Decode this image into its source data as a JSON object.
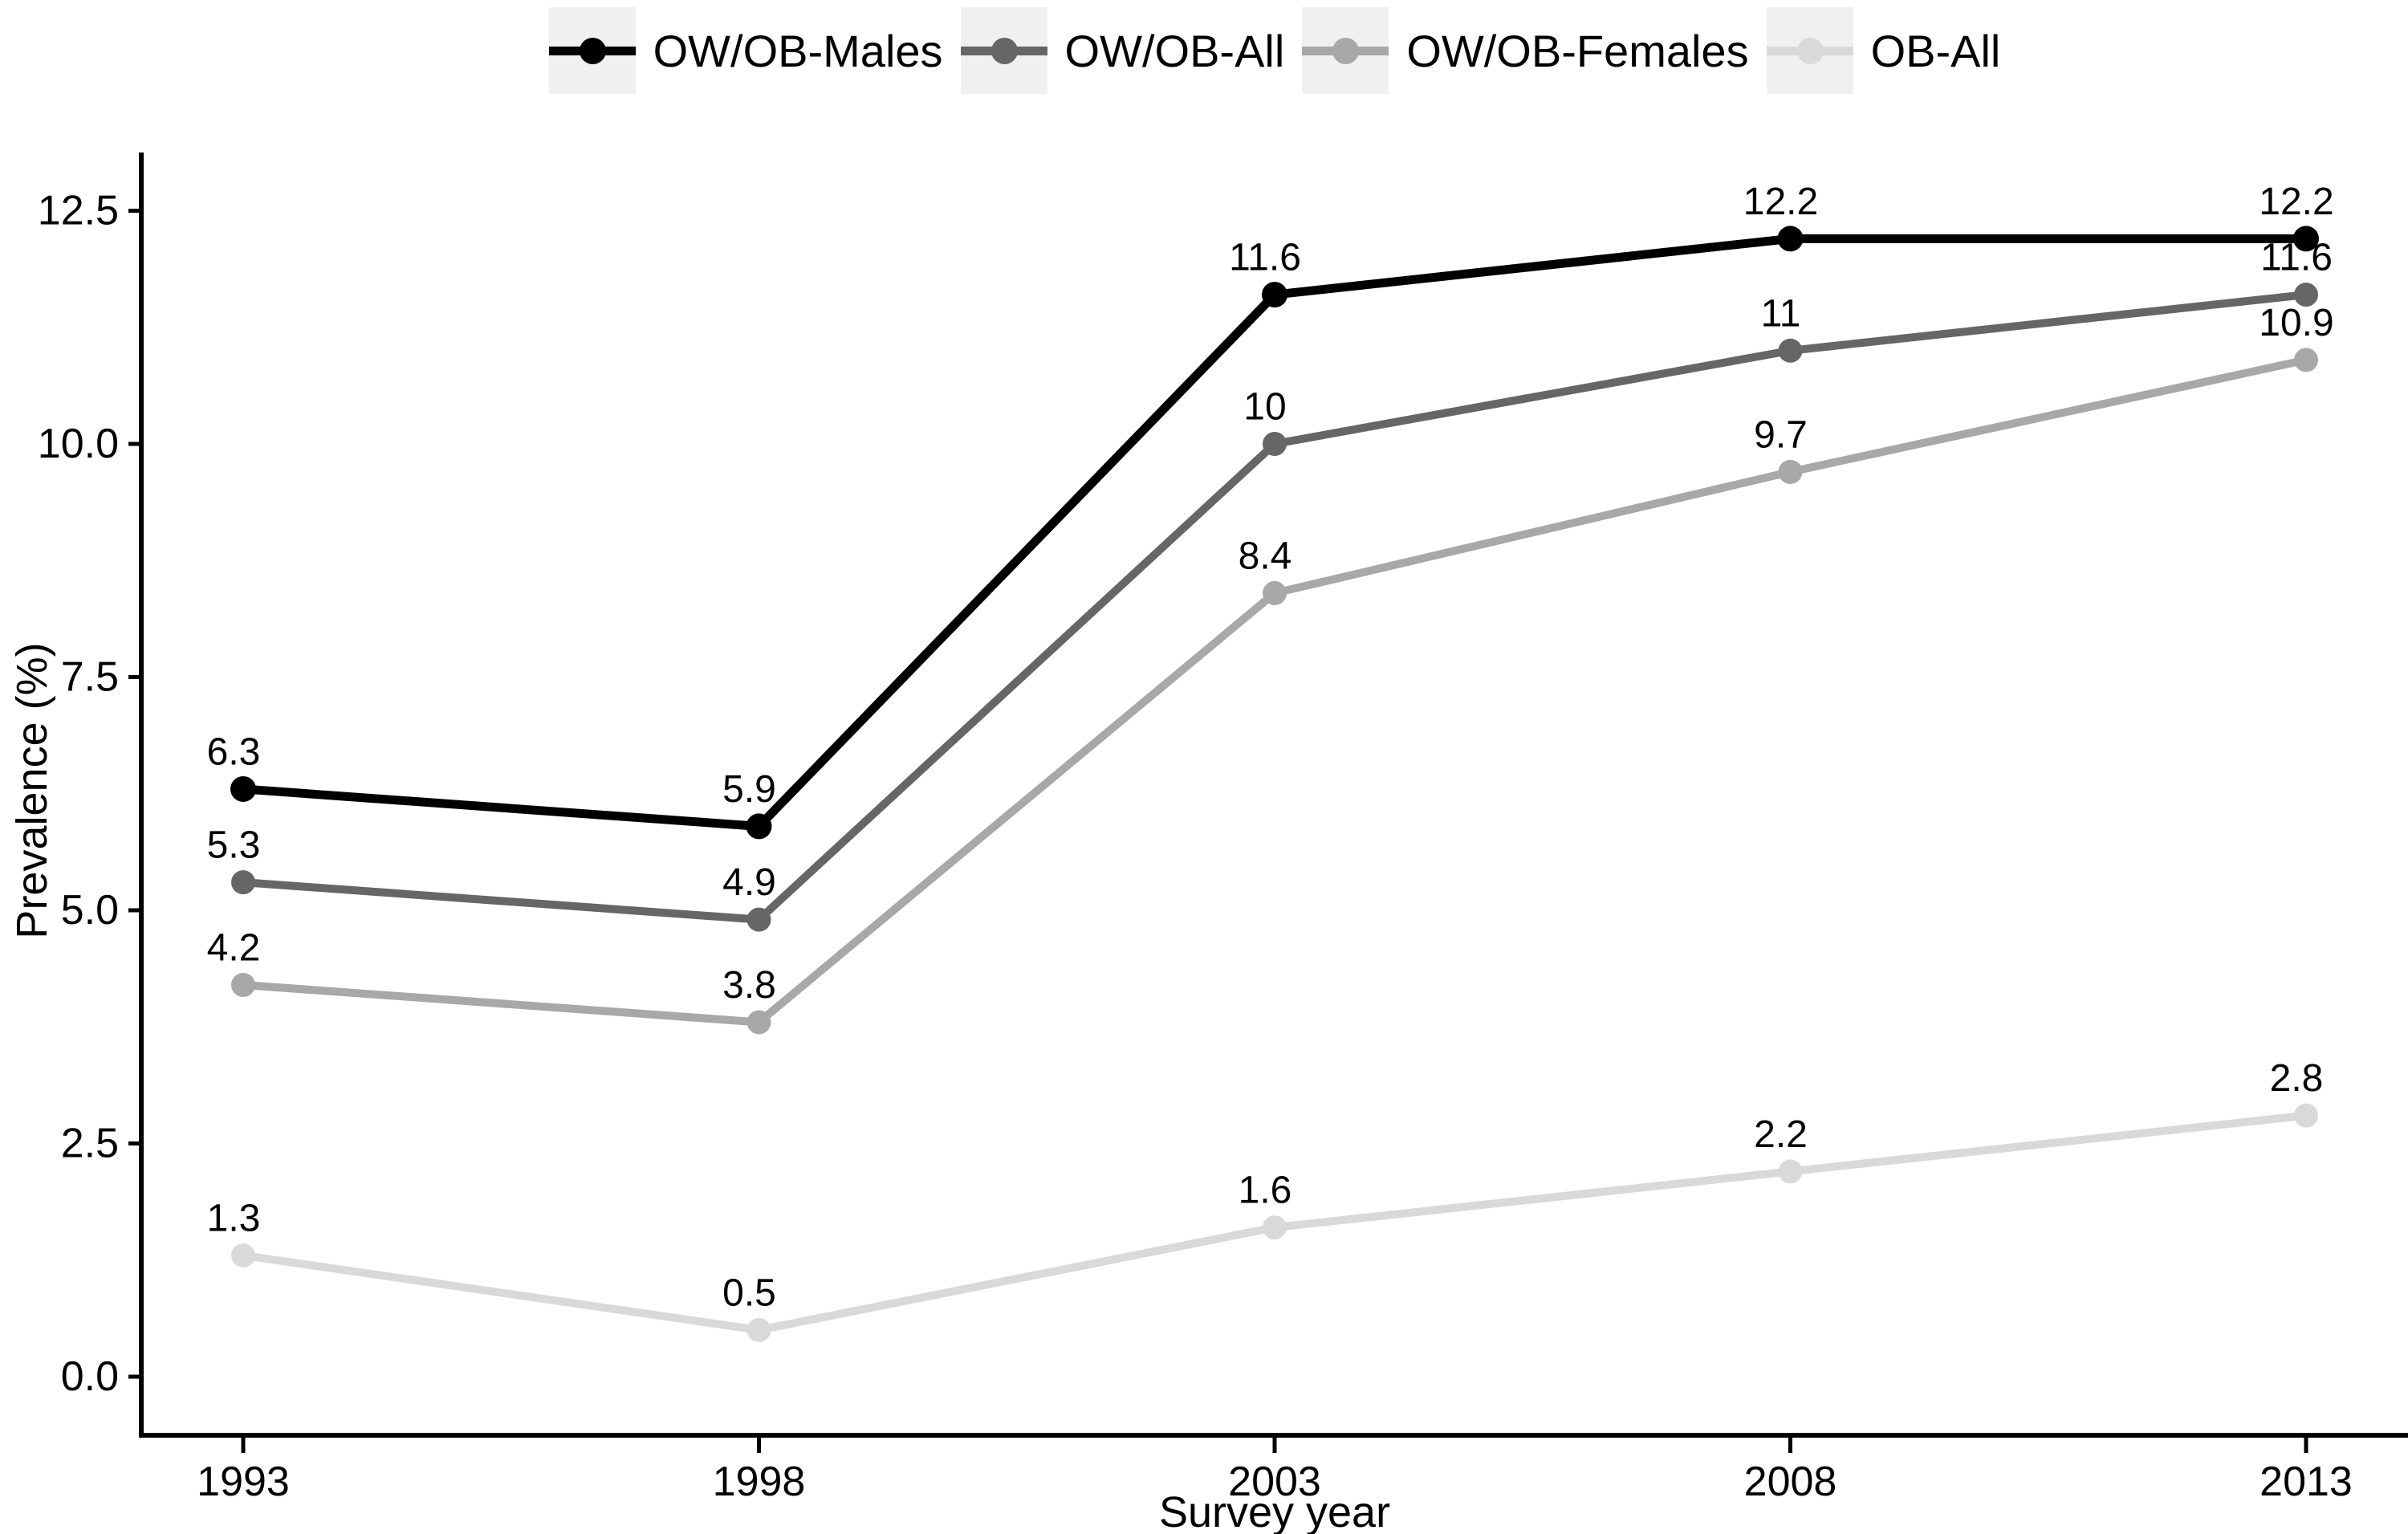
{
  "figure": {
    "background": "#ffffff",
    "text_color": "#000000",
    "legend_key_background": "#f0f0f0"
  },
  "legend": {
    "position": "top",
    "items": [
      {
        "label": "OW/OB-Males",
        "color": "#000000"
      },
      {
        "label": "OW/OB-All",
        "color": "#666666"
      },
      {
        "label": "OW/OB-Females",
        "color": "#a8a8a8"
      },
      {
        "label": "OB-All",
        "color": "#d9d9d9"
      }
    ]
  },
  "chart_data": {
    "type": "line",
    "title": "",
    "xlabel": "Survey year",
    "ylabel": "Prevalence (%)",
    "categories": [
      "1993",
      "1998",
      "2003",
      "2008",
      "2013"
    ],
    "y_ticks": [
      "0.0",
      "2.5",
      "5.0",
      "7.5",
      "10.0",
      "12.5"
    ],
    "ylim": [
      0,
      12.5
    ],
    "grid": false,
    "legend_position": "top",
    "point_labels_visible": true,
    "series": [
      {
        "name": "OW/OB-Males",
        "color": "#000000",
        "values": [
          6.3,
          5.9,
          11.6,
          12.2,
          12.2
        ]
      },
      {
        "name": "OW/OB-All",
        "color": "#666666",
        "values": [
          5.3,
          4.9,
          10,
          11,
          11.6
        ]
      },
      {
        "name": "OW/OB-Females",
        "color": "#a8a8a8",
        "values": [
          4.2,
          3.8,
          8.4,
          9.7,
          10.9
        ]
      },
      {
        "name": "OB-All",
        "color": "#d9d9d9",
        "values": [
          1.3,
          0.5,
          1.6,
          2.2,
          2.8
        ]
      }
    ]
  }
}
